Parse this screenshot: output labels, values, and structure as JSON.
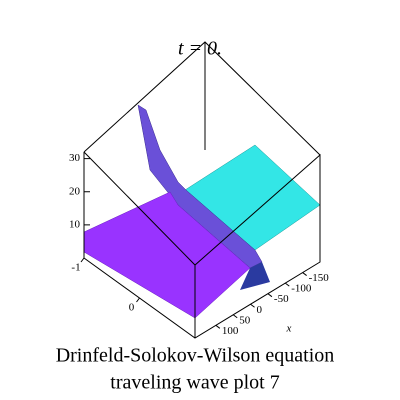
{
  "chart_data": {
    "type": "surface",
    "title": "t = 0.",
    "caption": [
      "Drinfeld-Solokov-Wilson equation",
      "traveling wave plot 7"
    ],
    "xlabel": "x",
    "xlim": [
      160,
      -200
    ],
    "xticks": [
      100,
      50,
      0,
      -50,
      -100,
      -150
    ],
    "ylim": [
      -1,
      1
    ],
    "yticks": [
      -1,
      0
    ],
    "zlim": [
      0,
      32
    ],
    "zticks": [
      10,
      20,
      30
    ]
  }
}
